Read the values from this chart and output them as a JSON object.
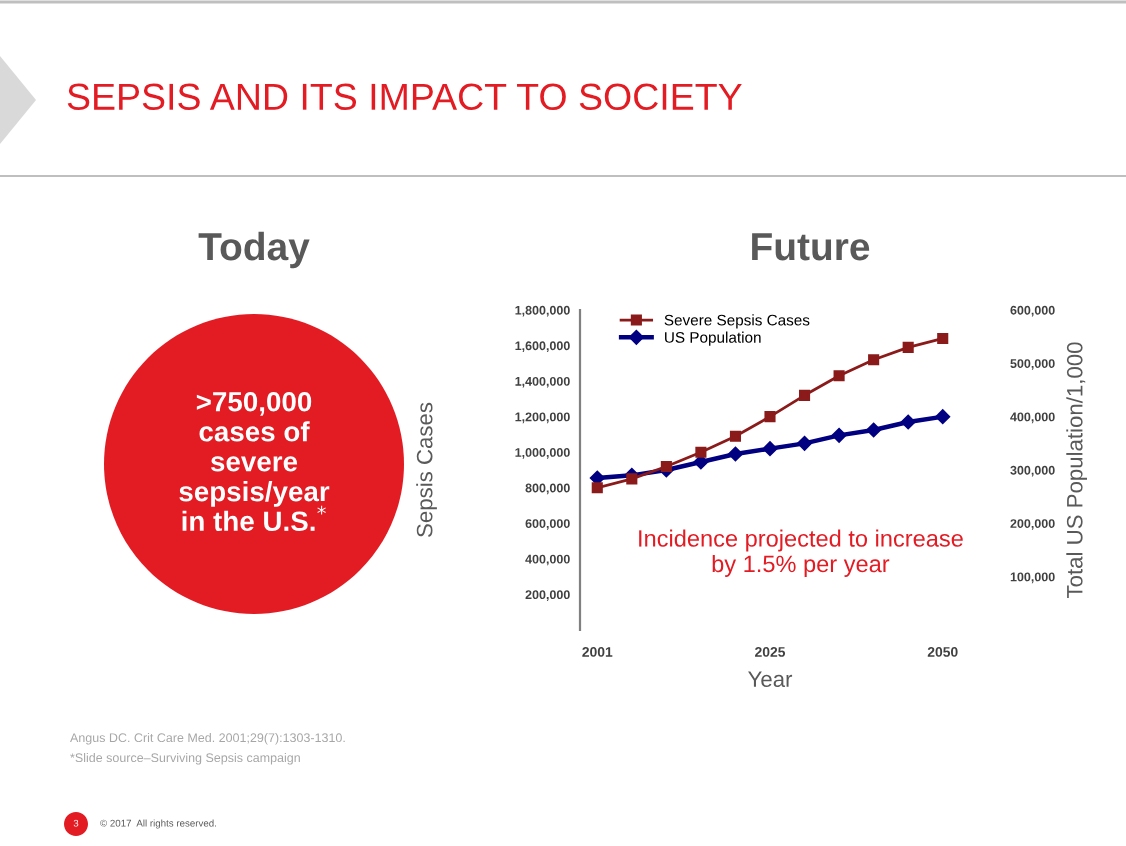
{
  "chart_data": {
    "type": "line",
    "title": "SEPSIS AND ITS IMPACT TO SOCIETY",
    "subtitle": "Future",
    "xlabel": "Year",
    "ylabel": "Sepsis Cases",
    "y2label": "Total US Population/1,000",
    "categories": [
      "2001",
      null,
      null,
      null,
      null,
      "2025",
      null,
      null,
      null,
      null,
      "2050"
    ],
    "series": [
      {
        "name": "Severe Sepsis Cases",
        "color": "#8b1a1a",
        "marker": "square",
        "values": [
          800000,
          850000,
          920000,
          1000000,
          1090000,
          1200000,
          1320000,
          1430000,
          1520000,
          1590000,
          1640000
        ]
      },
      {
        "name": "US Population",
        "color": "#000080",
        "marker": "diamond",
        "axis": "y2",
        "values": [
          285000,
          290000,
          300000,
          315000,
          330000,
          340000,
          350000,
          365000,
          375000,
          390000,
          400000
        ]
      }
    ],
    "ylim": [
      0,
      1800000
    ],
    "yticks": [
      {
        "value": 200000,
        "label": "200,000"
      },
      {
        "value": 400000,
        "label": "400,000"
      },
      {
        "value": 600000,
        "label": "600,000"
      },
      {
        "value": 800000,
        "label": "800,000"
      },
      {
        "value": 1000000,
        "label": "1,000,000"
      },
      {
        "value": 1200000,
        "label": "1,200,000"
      },
      {
        "value": 1400000,
        "label": "1,400,000"
      },
      {
        "value": 1600000,
        "label": "1,600,000"
      },
      {
        "value": 1800000,
        "label": "1,800,000"
      }
    ],
    "y2lim": [
      0,
      600000
    ],
    "y2ticks": [
      {
        "value": 100000,
        "label": "100,000"
      },
      {
        "value": 200000,
        "label": "200,000"
      },
      {
        "value": 300000,
        "label": "300,000"
      },
      {
        "value": 400000,
        "label": "400,000"
      },
      {
        "value": 500000,
        "label": "500,000"
      },
      {
        "value": 600000,
        "label": "600,000"
      }
    ],
    "legend": "top left",
    "grid": false,
    "line_style": "solid",
    "annotations": [
      "Incidence projected to increase by 1.5% per year",
      "Today",
      ">750,000 cases of severe sepsis/year in the U.S.$^{*}$",
      "Angus DC. Crit Care Med. 2001;29(7):1303-1310.",
      "*Slide source–Surviving Sepsis campaign",
      "3",
      "© 2017  All rights reserved."
    ]
  }
}
